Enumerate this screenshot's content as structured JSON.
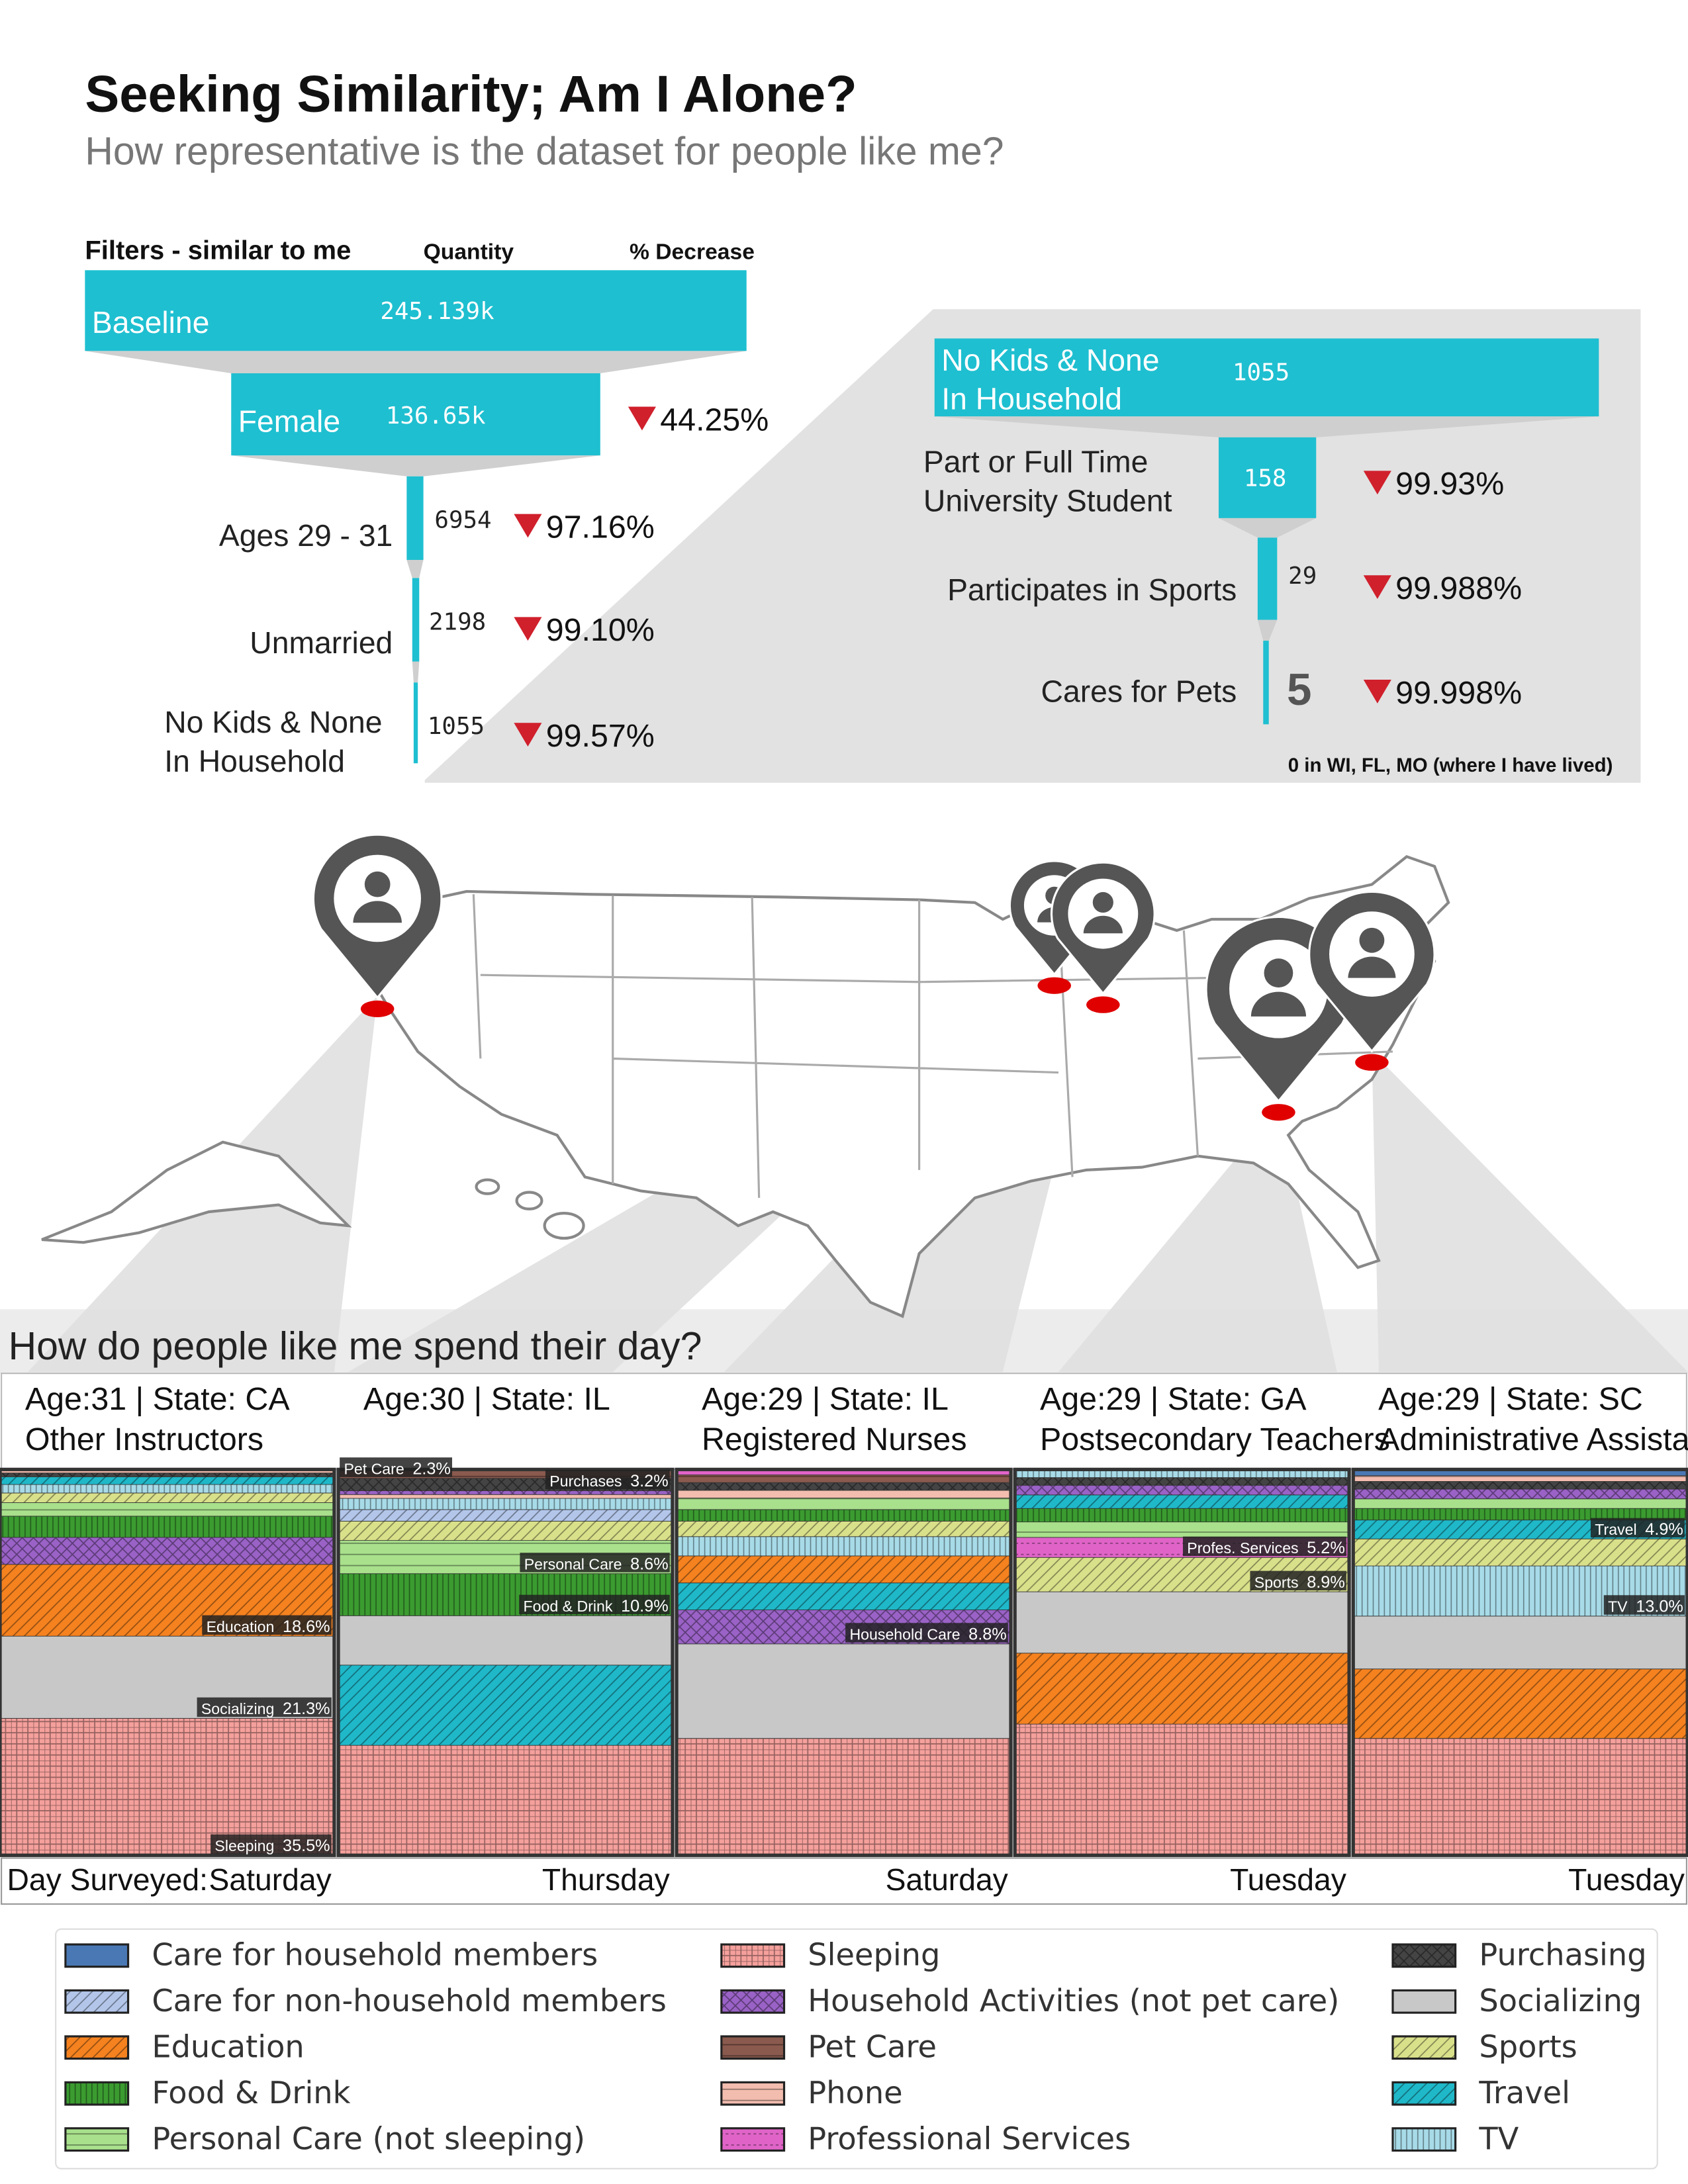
{
  "header": {
    "title": "Seeking Similarity; Am I Alone?",
    "subtitle": "How representative is the dataset for people like me?"
  },
  "funnel": {
    "headers": [
      "Filters - similar to me",
      "Quantity",
      "% Decrease"
    ],
    "rows": [
      {
        "label": [
          "Baseline"
        ],
        "quantity": "245.139k"
      },
      {
        "label": [
          "Female"
        ],
        "quantity": "136.65k",
        "decrease": "44.25%"
      },
      {
        "label": [
          "Ages 29 - 31"
        ],
        "quantity": "6954",
        "decrease": "97.16%"
      },
      {
        "label": [
          "Unmarried"
        ],
        "quantity": "2198",
        "decrease": "99.10%"
      },
      {
        "label": [
          "No Kids & None",
          "In Household"
        ],
        "quantity": "1055",
        "decrease": "99.57%"
      }
    ]
  },
  "zoom": {
    "rows": [
      {
        "label": [
          "No Kids & None",
          "In Household"
        ],
        "quantity": "1055"
      },
      {
        "label": [
          "Part or Full Time",
          "University Student"
        ],
        "quantity": "158",
        "decrease": "99.93%"
      },
      {
        "label": [
          "Participates in Sports"
        ],
        "quantity": "29",
        "decrease": "99.988%"
      },
      {
        "label": [
          "Cares for Pets"
        ],
        "quantity": "5",
        "decrease": "99.998%"
      }
    ],
    "note": "0 in WI, FL, MO (where I have lived)"
  },
  "day_chart": {
    "title": "How do people like me spend their day?",
    "day_label": "Day Surveyed:",
    "legend": [
      {
        "name": "Care for household members",
        "color": "#4a78b4",
        "hatch": "none"
      },
      {
        "name": "Care for non-household members",
        "color": "#b3c6ea",
        "hatch": "diagonal"
      },
      {
        "name": "Education",
        "color": "#f5821f",
        "hatch": "diagonal"
      },
      {
        "name": "Food & Drink",
        "color": "#3b9b30",
        "hatch": "vertical"
      },
      {
        "name": "Personal Care (not sleeping)",
        "color": "#a9e08c",
        "hatch": "horizontal"
      },
      {
        "name": "Sleeping",
        "color": "#f5a09c",
        "hatch": "grid"
      },
      {
        "name": "Household Activities (not pet care)",
        "color": "#9a62c6",
        "hatch": "cross"
      },
      {
        "name": "Pet Care",
        "color": "#8a5a4e",
        "hatch": "horizontal"
      },
      {
        "name": "Phone",
        "color": "#f2bcae",
        "hatch": "horizontal"
      },
      {
        "name": "Professional Services",
        "color": "#e064c8",
        "hatch": "dots"
      },
      {
        "name": "Purchasing",
        "color": "#444444",
        "hatch": "cross"
      },
      {
        "name": "Socializing",
        "color": "#c8c8c8",
        "hatch": "none"
      },
      {
        "name": "Sports",
        "color": "#d9e08a",
        "hatch": "diagonal"
      },
      {
        "name": "Travel",
        "color": "#1fb8c9",
        "hatch": "diagonal"
      },
      {
        "name": "TV",
        "color": "#a8dbe8",
        "hatch": "vertical"
      }
    ],
    "columns": [
      {
        "heading": "Age:31 | State: CA",
        "occupation": "Other Instructors",
        "day": "Saturday",
        "segments": [
          {
            "name": "Sleeping",
            "value": 35.5,
            "label": "Sleeping",
            "value_label": "35.5%"
          },
          {
            "name": "Socializing",
            "value": 21.3,
            "label": "Socializing",
            "value_label": "21.3%"
          },
          {
            "name": "Education",
            "value": 18.6,
            "label": "Education",
            "value_label": "18.6%"
          },
          {
            "name": "Household Activities (not pet care)",
            "value": 7
          },
          {
            "name": "Food & Drink",
            "value": 5.5
          },
          {
            "name": "Personal Care (not sleeping)",
            "value": 3.5
          },
          {
            "name": "Sports",
            "value": 2.5
          },
          {
            "name": "TV",
            "value": 2.2
          },
          {
            "name": "Travel",
            "value": 2
          },
          {
            "name": "Purchasing",
            "value": 1
          },
          {
            "name": "Phone",
            "value": 0.9
          }
        ]
      },
      {
        "heading": "Age:30 | State: IL",
        "occupation": "",
        "day": "Thursday",
        "segments": [
          {
            "name": "Sleeping",
            "value": 28.5
          },
          {
            "name": "Travel",
            "value": 20.8
          },
          {
            "name": "Socializing",
            "value": 12.8
          },
          {
            "name": "Food & Drink",
            "value": 10.9,
            "label": "Food & Drink",
            "value_label": "10.9%"
          },
          {
            "name": "Personal Care (not sleeping)",
            "value": 8.6,
            "label": "Personal Care",
            "value_label": "8.6%"
          },
          {
            "name": "Sports",
            "value": 5
          },
          {
            "name": "Care for non-household members",
            "value": 3
          },
          {
            "name": "TV",
            "value": 2.9
          },
          {
            "name": "Phone",
            "value": 1
          },
          {
            "name": "Household Activities (not pet care)",
            "value": 1
          },
          {
            "name": "Purchasing",
            "value": 3.2,
            "label": "Purchases",
            "value_label": "3.2%"
          },
          {
            "name": "Pet Care",
            "value": 2.3,
            "label": "Pet Care",
            "value_label": "2.3%"
          }
        ]
      },
      {
        "heading": "Age:29 | State: IL",
        "occupation": "Registered Nurses",
        "day": "Saturday",
        "segments": [
          {
            "name": "Sleeping",
            "value": 30.3
          },
          {
            "name": "Socializing",
            "value": 24.5
          },
          {
            "name": "Household Activities (not pet care)",
            "value": 8.8,
            "label": "Household Care",
            "value_label": "8.8%"
          },
          {
            "name": "Travel",
            "value": 7
          },
          {
            "name": "Education",
            "value": 7
          },
          {
            "name": "TV",
            "value": 5
          },
          {
            "name": "Sports",
            "value": 4
          },
          {
            "name": "Food & Drink",
            "value": 3
          },
          {
            "name": "Personal Care (not sleeping)",
            "value": 3
          },
          {
            "name": "Phone",
            "value": 2
          },
          {
            "name": "Purchasing",
            "value": 2
          },
          {
            "name": "Pet Care",
            "value": 2
          },
          {
            "name": "Professional Services",
            "value": 1.4
          }
        ]
      },
      {
        "heading": "Age:29 | State: GA",
        "occupation": "Postsecondary Teachers",
        "day": "Tuesday",
        "segments": [
          {
            "name": "Sleeping",
            "value": 34
          },
          {
            "name": "Education",
            "value": 18.4
          },
          {
            "name": "Socializing",
            "value": 15.9
          },
          {
            "name": "Sports",
            "value": 8.9,
            "label": "Sports",
            "value_label": "8.9%"
          },
          {
            "name": "Professional Services",
            "value": 5.2,
            "label": "Profes. Services",
            "value_label": "5.2%"
          },
          {
            "name": "Personal Care (not sleeping)",
            "value": 4
          },
          {
            "name": "Food & Drink",
            "value": 3.5
          },
          {
            "name": "Travel",
            "value": 3.5
          },
          {
            "name": "Household Activities (not pet care)",
            "value": 2.5
          },
          {
            "name": "Purchasing",
            "value": 2
          },
          {
            "name": "TV",
            "value": 2.1
          }
        ]
      },
      {
        "heading": "Age:29 | State: SC",
        "occupation": "Administrative Assistant",
        "day": "Tuesday",
        "segments": [
          {
            "name": "Sleeping",
            "value": 30.3
          },
          {
            "name": "Education",
            "value": 18
          },
          {
            "name": "Socializing",
            "value": 13.7
          },
          {
            "name": "TV",
            "value": 13.0,
            "label": "TV",
            "value_label": "13.0%"
          },
          {
            "name": "Sports",
            "value": 7
          },
          {
            "name": "Travel",
            "value": 4.9,
            "label": "Travel",
            "value_label": "4.9%"
          },
          {
            "name": "Food & Drink",
            "value": 3
          },
          {
            "name": "Personal Care (not sleeping)",
            "value": 2.5
          },
          {
            "name": "Household Activities (not pet care)",
            "value": 2.5
          },
          {
            "name": "Purchasing",
            "value": 2
          },
          {
            "name": "Phone",
            "value": 1.5
          },
          {
            "name": "Care for household members",
            "value": 1.6
          }
        ]
      }
    ]
  }
}
